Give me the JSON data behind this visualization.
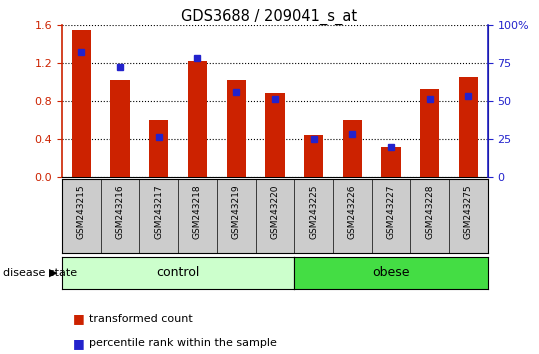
{
  "title": "GDS3688 / 209041_s_at",
  "samples": [
    "GSM243215",
    "GSM243216",
    "GSM243217",
    "GSM243218",
    "GSM243219",
    "GSM243220",
    "GSM243225",
    "GSM243226",
    "GSM243227",
    "GSM243228",
    "GSM243275"
  ],
  "transformed_count": [
    1.55,
    1.02,
    0.6,
    1.22,
    1.02,
    0.88,
    0.44,
    0.6,
    0.32,
    0.92,
    1.05
  ],
  "percentile_rank": [
    82,
    72,
    26,
    78,
    56,
    51,
    25,
    28,
    20,
    51,
    53
  ],
  "control_count": 6,
  "obese_count": 5,
  "ylim_left": [
    0,
    1.6
  ],
  "ylim_right": [
    0,
    100
  ],
  "bar_color": "#cc2200",
  "dot_color": "#2222cc",
  "control_color": "#ccffcc",
  "obese_color": "#44dd44",
  "tick_area_color": "#cccccc",
  "legend_red": "transformed count",
  "legend_blue": "percentile rank within the sample",
  "left_label": "disease state",
  "control_label": "control",
  "obese_label": "obese",
  "yticks_left": [
    0,
    0.4,
    0.8,
    1.2,
    1.6
  ],
  "yticks_right": [
    0,
    25,
    50,
    75,
    100
  ],
  "right_axis_color": "#2222cc",
  "left_axis_color": "#cc2200",
  "bar_width": 0.5
}
